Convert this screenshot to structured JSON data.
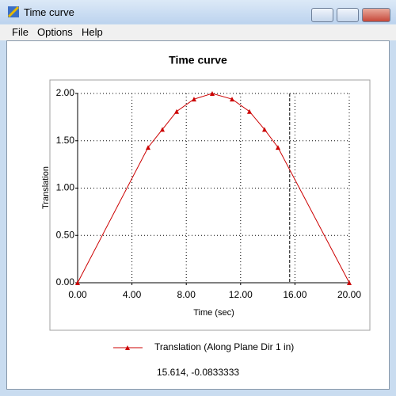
{
  "window": {
    "title": "Time curve",
    "menu": [
      "File",
      "Options",
      "Help"
    ]
  },
  "chart_data": {
    "type": "line",
    "title": "Time curve",
    "x_label": "Time (sec)",
    "y_label": "Translation",
    "x": [
      0,
      5.19,
      6.24,
      7.29,
      8.57,
      9.91,
      11.37,
      12.65,
      13.76,
      14.75,
      20
    ],
    "series": [
      {
        "name": "Translation (Along Plane Dir 1 in)",
        "color": "#cc0000",
        "values": [
          0,
          1.43,
          1.62,
          1.81,
          1.94,
          2.0,
          1.94,
          1.81,
          1.62,
          1.43,
          0
        ]
      }
    ],
    "xlim": [
      0,
      20
    ],
    "ylim": [
      0,
      2
    ],
    "xticks": [
      {
        "value": 0,
        "label": "0.00"
      },
      {
        "value": 4,
        "label": "4.00"
      },
      {
        "value": 8,
        "label": "8.00"
      },
      {
        "value": 12,
        "label": "12.00"
      },
      {
        "value": 16,
        "label": "16.00"
      },
      {
        "value": 20,
        "label": "20.00"
      }
    ],
    "yticks": [
      {
        "value": 0,
        "label": "0.00"
      },
      {
        "value": 0.5,
        "label": "0.50"
      },
      {
        "value": 1,
        "label": "1.00"
      },
      {
        "value": 1.5,
        "label": "1.50"
      },
      {
        "value": 2,
        "label": "2.00"
      }
    ],
    "grid": true,
    "cursor_x": 15.614
  },
  "status": "15.614, -0.0833333"
}
